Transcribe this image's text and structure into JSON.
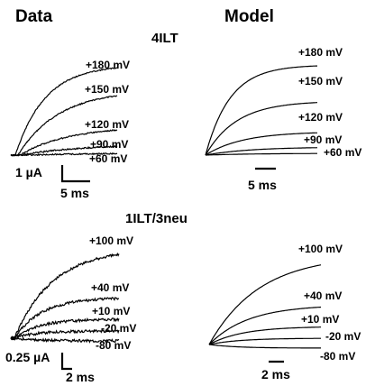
{
  "headers": {
    "data": "Data",
    "model": "Model"
  },
  "sections": [
    {
      "id": "4ilt",
      "title": "4ILT",
      "data_labels": [
        "+180 mV",
        "+150 mV",
        "+120 mV",
        "+90 mV",
        "+60 mV"
      ],
      "model_labels": [
        "+180 mV",
        "+150 mV",
        "+120 mV",
        "+90 mV",
        "+60 mV"
      ],
      "scale": {
        "amplitude": "1 µA",
        "time_data": "5 ms",
        "time_model": "5 ms"
      }
    },
    {
      "id": "1ilt3neu",
      "title": "1ILT/3neu",
      "data_labels": [
        "+100 mV",
        "+40 mV",
        "+10 mV",
        "-20 mV",
        "-80 mV"
      ],
      "model_labels": [
        "+100 mV",
        "+40 mV",
        "+10 mV",
        "-20 mV",
        "-80 mV"
      ],
      "scale": {
        "amplitude": "0.25 µA",
        "time_data": "2 ms",
        "time_model": "2 ms"
      }
    }
  ]
}
